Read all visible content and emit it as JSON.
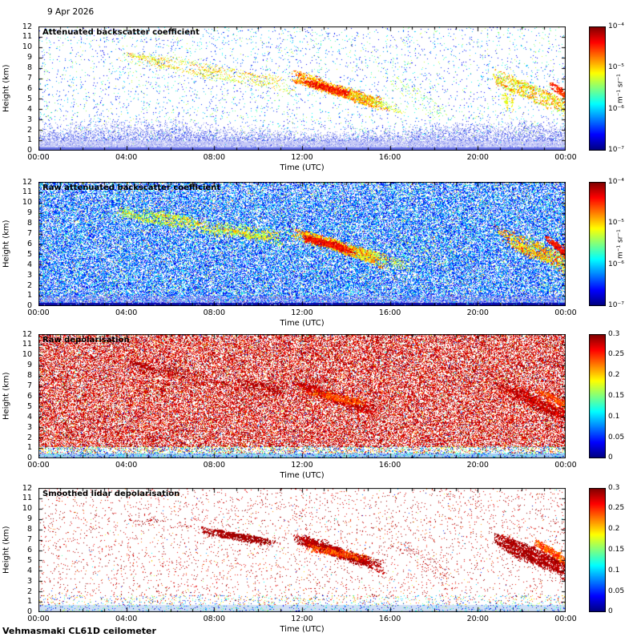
{
  "date_label": "9 Apr 2026",
  "footer": "Vehmasmaki CL61D ceilometer",
  "axes": {
    "ylabel": "Height (km)",
    "xlabel": "Time (UTC)",
    "yticks": [
      "12",
      "11",
      "10",
      "9",
      "8",
      "7",
      "6",
      "5",
      "4",
      "3",
      "2",
      "1",
      "0"
    ],
    "xticks": [
      "00:00",
      "04:00",
      "08:00",
      "12:00",
      "16:00",
      "20:00",
      "00:00"
    ]
  },
  "panels": [
    {
      "id": "attenuated-backscatter",
      "title": "Attenuated backscatter coefficient",
      "colorbar": {
        "ticks": [
          "10⁻⁴",
          "10⁻⁵",
          "10⁻⁶",
          "10⁻⁷"
        ],
        "unit": "m⁻¹ sr⁻¹"
      }
    },
    {
      "id": "raw-attenuated-backscatter",
      "title": "Raw attenuated backscatter coefficient",
      "colorbar": {
        "ticks": [
          "10⁻⁴",
          "10⁻⁵",
          "10⁻⁶",
          "10⁻⁷"
        ],
        "unit": "m⁻¹ sr⁻¹"
      }
    },
    {
      "id": "raw-depolarisation",
      "title": "Raw depolarisation",
      "colorbar": {
        "ticks": [
          "0.3",
          "0.25",
          "0.2",
          "0.15",
          "0.1",
          "0.05",
          "0"
        ],
        "unit": ""
      }
    },
    {
      "id": "smoothed-depolarisation",
      "title": "Smoothed lidar depolarisation",
      "colorbar": {
        "ticks": [
          "0.3",
          "0.25",
          "0.2",
          "0.15",
          "0.1",
          "0.05",
          "0"
        ],
        "unit": ""
      }
    }
  ],
  "chart_data": {
    "type": "heatmap",
    "instrument": "Vehmasmaki CL61D ceilometer",
    "date": "9 Apr 2026",
    "x": {
      "label": "Time (UTC)",
      "range_hours": [
        0,
        24
      ],
      "tick_step_hours": 4,
      "ticks": [
        "00:00",
        "04:00",
        "08:00",
        "12:00",
        "16:00",
        "20:00",
        "00:00"
      ]
    },
    "y": {
      "label": "Height (km)",
      "range_km": [
        0,
        12
      ],
      "tick_step_km": 1
    },
    "colormap": "jet",
    "panels": [
      {
        "title": "Attenuated backscatter coefficient",
        "scale": "log",
        "range": [
          "1e-7",
          "1e-4"
        ],
        "units": "m⁻¹ sr⁻¹"
      },
      {
        "title": "Raw attenuated backscatter coefficient",
        "scale": "log",
        "range": [
          "1e-7",
          "1e-4"
        ],
        "units": "m⁻¹ sr⁻¹"
      },
      {
        "title": "Raw depolarisation",
        "scale": "linear",
        "range": [
          0,
          0.3
        ],
        "units": ""
      },
      {
        "title": "Smoothed lidar depolarisation",
        "scale": "linear",
        "range": [
          0,
          0.3
        ],
        "units": ""
      }
    ],
    "features": [
      {
        "name": "boundary-layer-aerosol",
        "time_h": [
          0,
          24
        ],
        "height_km": [
          0,
          2.5
        ]
      },
      {
        "name": "descending-cirrus",
        "time_h": [
          3.5,
          10.5
        ],
        "height_km": [
          9.3,
          6.8
        ]
      },
      {
        "name": "midday-cloud-band",
        "time_h": [
          11.5,
          14.8
        ],
        "height_km": [
          7.3,
          5.0
        ]
      },
      {
        "name": "afternoon-scattered-cloud",
        "time_h": [
          16,
          18.5
        ],
        "height_km": [
          7.0,
          3.8
        ]
      },
      {
        "name": "evening-cloud-band",
        "time_h": [
          20.7,
          24
        ],
        "height_km": [
          7.3,
          4.2
        ]
      }
    ]
  }
}
